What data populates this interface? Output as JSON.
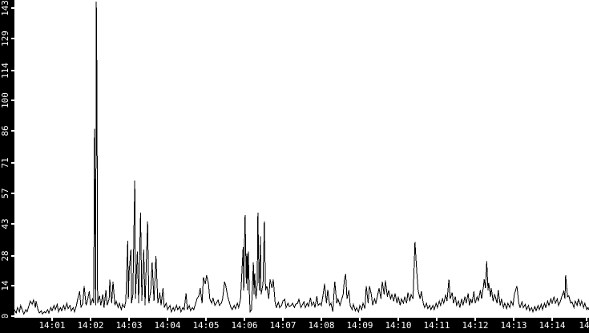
{
  "window": {
    "kind": "traffic-history-graph",
    "plot_background": "#ffffff",
    "axis_bar_color": "#000000",
    "axis_label_color": "#ffffff",
    "line_color": "#000000"
  },
  "chart_data": {
    "type": "line",
    "title": "",
    "xlabel": "",
    "ylabel": "",
    "legend": null,
    "grid": false,
    "x_unit": "time of day (HH:MM), 1 tick per minute",
    "y_range": [
      0,
      143
    ],
    "x_visible_range": [
      "14:00",
      "14:15"
    ],
    "x_axis": {
      "ticks": [
        {
          "t": 60,
          "label": "14:01"
        },
        {
          "t": 120,
          "label": "14:02"
        },
        {
          "t": 180,
          "label": "14:03"
        },
        {
          "t": 240,
          "label": "14:04"
        },
        {
          "t": 300,
          "label": "14:05"
        },
        {
          "t": 360,
          "label": "14:06"
        },
        {
          "t": 420,
          "label": "14:07"
        },
        {
          "t": 480,
          "label": "14:08"
        },
        {
          "t": 540,
          "label": "14:09"
        },
        {
          "t": 600,
          "label": "14:10"
        },
        {
          "t": 660,
          "label": "14:11"
        },
        {
          "t": 720,
          "label": "14:12"
        },
        {
          "t": 780,
          "label": "14:13"
        },
        {
          "t": 840,
          "label": "14:14"
        },
        {
          "t": 900,
          "label": "14"
        }
      ]
    },
    "y_axis": {
      "ticks": [
        {
          "v": 0,
          "label": "0"
        },
        {
          "v": 14,
          "label": "14"
        },
        {
          "v": 28,
          "label": "28"
        },
        {
          "v": 43,
          "label": "43"
        },
        {
          "v": 57,
          "label": "57"
        },
        {
          "v": 71,
          "label": "71"
        },
        {
          "v": 86,
          "label": "86"
        },
        {
          "v": 100,
          "label": "100"
        },
        {
          "v": 114,
          "label": "114"
        },
        {
          "v": 129,
          "label": "129"
        },
        {
          "v": 143,
          "label": "143"
        }
      ]
    },
    "points_unit": "[seconds after 14:00, value]",
    "points": [
      [
        1,
        3
      ],
      [
        4,
        1.5
      ],
      [
        6,
        4
      ],
      [
        9,
        2
      ],
      [
        11,
        5
      ],
      [
        14,
        2.5
      ],
      [
        16,
        1
      ],
      [
        19,
        3
      ],
      [
        21,
        2
      ],
      [
        24,
        5
      ],
      [
        26,
        7
      ],
      [
        29,
        5.5
      ],
      [
        31,
        7.5
      ],
      [
        34,
        4
      ],
      [
        35,
        7
      ],
      [
        38,
        3
      ],
      [
        40,
        1.5
      ],
      [
        43,
        2.5
      ],
      [
        45,
        1
      ],
      [
        48,
        2
      ],
      [
        50,
        1.5
      ],
      [
        53,
        3
      ],
      [
        55,
        1.5
      ],
      [
        58,
        4
      ],
      [
        60,
        2.5
      ],
      [
        63,
        5
      ],
      [
        65,
        3
      ],
      [
        68,
        5.5
      ],
      [
        70,
        2
      ],
      [
        73,
        4
      ],
      [
        75,
        2.5
      ],
      [
        78,
        5
      ],
      [
        80,
        3
      ],
      [
        83,
        6
      ],
      [
        85,
        3.5
      ],
      [
        88,
        5
      ],
      [
        90,
        2.5
      ],
      [
        93,
        4
      ],
      [
        95,
        2
      ],
      [
        98,
        5
      ],
      [
        100,
        8
      ],
      [
        103,
        11.5
      ],
      [
        105,
        4
      ],
      [
        108,
        6
      ],
      [
        110,
        14
      ],
      [
        113,
        5
      ],
      [
        115,
        7
      ],
      [
        118,
        11.5
      ],
      [
        120,
        5
      ],
      [
        123,
        8
      ],
      [
        125,
        6
      ],
      [
        126,
        87
      ],
      [
        128,
        5
      ],
      [
        129,
        146
      ],
      [
        130,
        107
      ],
      [
        131,
        6
      ],
      [
        134,
        9.5
      ],
      [
        136,
        5
      ],
      [
        139,
        10
      ],
      [
        141,
        4
      ],
      [
        144,
        12
      ],
      [
        146,
        5
      ],
      [
        149,
        8
      ],
      [
        150,
        17
      ],
      [
        153,
        6
      ],
      [
        155,
        16
      ],
      [
        158,
        5
      ],
      [
        160,
        7
      ],
      [
        163,
        4
      ],
      [
        165,
        6
      ],
      [
        168,
        3
      ],
      [
        170,
        5.5
      ],
      [
        173,
        4
      ],
      [
        175,
        7
      ],
      [
        178,
        35
      ],
      [
        179,
        8
      ],
      [
        180,
        20
      ],
      [
        183,
        31
      ],
      [
        184,
        6
      ],
      [
        186,
        10
      ],
      [
        189,
        63
      ],
      [
        190,
        8
      ],
      [
        193,
        30
      ],
      [
        195,
        6
      ],
      [
        198,
        48
      ],
      [
        200,
        7
      ],
      [
        203,
        31
      ],
      [
        205,
        5
      ],
      [
        209,
        44
      ],
      [
        211,
        6
      ],
      [
        214,
        12
      ],
      [
        216,
        25
      ],
      [
        219,
        7
      ],
      [
        222,
        28
      ],
      [
        225,
        6
      ],
      [
        228,
        11
      ],
      [
        230,
        5
      ],
      [
        233,
        13
      ],
      [
        235,
        4
      ],
      [
        238,
        6
      ],
      [
        240,
        3
      ],
      [
        244,
        5
      ],
      [
        246,
        2
      ],
      [
        249,
        4
      ],
      [
        251,
        2.5
      ],
      [
        254,
        5
      ],
      [
        256,
        3
      ],
      [
        259,
        4.5
      ],
      [
        261,
        2
      ],
      [
        264,
        4
      ],
      [
        266,
        3
      ],
      [
        269,
        10.5
      ],
      [
        271,
        3
      ],
      [
        274,
        5
      ],
      [
        276,
        2.5
      ],
      [
        279,
        4
      ],
      [
        281,
        3
      ],
      [
        284,
        6
      ],
      [
        286,
        8
      ],
      [
        289,
        9.5
      ],
      [
        291,
        13
      ],
      [
        294,
        6
      ],
      [
        296,
        18
      ],
      [
        299,
        15
      ],
      [
        301,
        19
      ],
      [
        304,
        15
      ],
      [
        306,
        8
      ],
      [
        309,
        6
      ],
      [
        311,
        8.5
      ],
      [
        314,
        5
      ],
      [
        316,
        6
      ],
      [
        319,
        7.5
      ],
      [
        321,
        5
      ],
      [
        324,
        6
      ],
      [
        326,
        8
      ],
      [
        329,
        16
      ],
      [
        331,
        14
      ],
      [
        334,
        9
      ],
      [
        336,
        7
      ],
      [
        339,
        4
      ],
      [
        341,
        3
      ],
      [
        344,
        5
      ],
      [
        346,
        3.5
      ],
      [
        349,
        6
      ],
      [
        351,
        4
      ],
      [
        354,
        8
      ],
      [
        356,
        20
      ],
      [
        358,
        32
      ],
      [
        359,
        12
      ],
      [
        360,
        31
      ],
      [
        361,
        47
      ],
      [
        363,
        15
      ],
      [
        364,
        29
      ],
      [
        365,
        12
      ],
      [
        366,
        30
      ],
      [
        368,
        8
      ],
      [
        369,
        2
      ],
      [
        371,
        3
      ],
      [
        374,
        25
      ],
      [
        375,
        10
      ],
      [
        376,
        20
      ],
      [
        378,
        8
      ],
      [
        380,
        15
      ],
      [
        381,
        48
      ],
      [
        383,
        12
      ],
      [
        385,
        37
      ],
      [
        386,
        10
      ],
      [
        389,
        15
      ],
      [
        391,
        44
      ],
      [
        393,
        12
      ],
      [
        395,
        14
      ],
      [
        398,
        8
      ],
      [
        400,
        17
      ],
      [
        403,
        13
      ],
      [
        405,
        17
      ],
      [
        408,
        6
      ],
      [
        410,
        4
      ],
      [
        413,
        6.5
      ],
      [
        415,
        4
      ],
      [
        418,
        5
      ],
      [
        420,
        7
      ],
      [
        423,
        7.8
      ],
      [
        425,
        4
      ],
      [
        428,
        6
      ],
      [
        430,
        4.5
      ],
      [
        433,
        5
      ],
      [
        435,
        6
      ],
      [
        438,
        4
      ],
      [
        440,
        5.5
      ],
      [
        443,
        6
      ],
      [
        445,
        7.8
      ],
      [
        448,
        4
      ],
      [
        450,
        5
      ],
      [
        453,
        6.7
      ],
      [
        455,
        4
      ],
      [
        458,
        6
      ],
      [
        460,
        4.5
      ],
      [
        463,
        8.6
      ],
      [
        465,
        5
      ],
      [
        468,
        6.5
      ],
      [
        470,
        4
      ],
      [
        473,
        9.3
      ],
      [
        475,
        5
      ],
      [
        478,
        6
      ],
      [
        480,
        5
      ],
      [
        483,
        10.5
      ],
      [
        485,
        15
      ],
      [
        488,
        6
      ],
      [
        490,
        12.3
      ],
      [
        493,
        5
      ],
      [
        495,
        6
      ],
      [
        498,
        2
      ],
      [
        500,
        12
      ],
      [
        501,
        16
      ],
      [
        504,
        6
      ],
      [
        506,
        8
      ],
      [
        509,
        5
      ],
      [
        511,
        7
      ],
      [
        514,
        10
      ],
      [
        516,
        17
      ],
      [
        518,
        19.5
      ],
      [
        520,
        8
      ],
      [
        523,
        12
      ],
      [
        525,
        5
      ],
      [
        528,
        3
      ],
      [
        530,
        5.5
      ],
      [
        533,
        2.5
      ],
      [
        535,
        4
      ],
      [
        538,
        2
      ],
      [
        540,
        5
      ],
      [
        543,
        3
      ],
      [
        545,
        6
      ],
      [
        548,
        3.5
      ],
      [
        550,
        14
      ],
      [
        553,
        6
      ],
      [
        555,
        14
      ],
      [
        558,
        10
      ],
      [
        560,
        5
      ],
      [
        563,
        8
      ],
      [
        565,
        6
      ],
      [
        568,
        10
      ],
      [
        570,
        13
      ],
      [
        573,
        8
      ],
      [
        575,
        16
      ],
      [
        578,
        10
      ],
      [
        580,
        16.5
      ],
      [
        583,
        9
      ],
      [
        585,
        12
      ],
      [
        588,
        8
      ],
      [
        590,
        10
      ],
      [
        593,
        7
      ],
      [
        595,
        10.5
      ],
      [
        598,
        6
      ],
      [
        600,
        9
      ],
      [
        603,
        5
      ],
      [
        605,
        8
      ],
      [
        608,
        6
      ],
      [
        610,
        9
      ],
      [
        613,
        6
      ],
      [
        615,
        11
      ],
      [
        618,
        7
      ],
      [
        620,
        10
      ],
      [
        623,
        8
      ],
      [
        625,
        25
      ],
      [
        626,
        34.5
      ],
      [
        629,
        20
      ],
      [
        631,
        12
      ],
      [
        634,
        8
      ],
      [
        636,
        11.5
      ],
      [
        639,
        6
      ],
      [
        641,
        4
      ],
      [
        644,
        6
      ],
      [
        646,
        3.5
      ],
      [
        649,
        5
      ],
      [
        651,
        3
      ],
      [
        654,
        5
      ],
      [
        656,
        3
      ],
      [
        659,
        6
      ],
      [
        661,
        4
      ],
      [
        664,
        7
      ],
      [
        666,
        5
      ],
      [
        669,
        8
      ],
      [
        671,
        6
      ],
      [
        674,
        10
      ],
      [
        676,
        7
      ],
      [
        679,
        17
      ],
      [
        681,
        8
      ],
      [
        684,
        11
      ],
      [
        686,
        6
      ],
      [
        689,
        9
      ],
      [
        691,
        5
      ],
      [
        694,
        7
      ],
      [
        696,
        4
      ],
      [
        699,
        8
      ],
      [
        701,
        5
      ],
      [
        704,
        9
      ],
      [
        706,
        6
      ],
      [
        709,
        10.5
      ],
      [
        711,
        5
      ],
      [
        713,
        8
      ],
      [
        715,
        6
      ],
      [
        718,
        11.5
      ],
      [
        720,
        6
      ],
      [
        723,
        9
      ],
      [
        725,
        7
      ],
      [
        728,
        12
      ],
      [
        730,
        8
      ],
      [
        733,
        14
      ],
      [
        734,
        17
      ],
      [
        736,
        13
      ],
      [
        738,
        25.5
      ],
      [
        740,
        12
      ],
      [
        741,
        15.5
      ],
      [
        744,
        9
      ],
      [
        745,
        13
      ],
      [
        748,
        7
      ],
      [
        750,
        10
      ],
      [
        751,
        9.5
      ],
      [
        754,
        6
      ],
      [
        756,
        12
      ],
      [
        759,
        5
      ],
      [
        761,
        8
      ],
      [
        764,
        4
      ],
      [
        766,
        6
      ],
      [
        769,
        3.5
      ],
      [
        771,
        6
      ],
      [
        774,
        4
      ],
      [
        776,
        7
      ],
      [
        779,
        5
      ],
      [
        781,
        10
      ],
      [
        785,
        14
      ],
      [
        788,
        6
      ],
      [
        790,
        4
      ],
      [
        793,
        6.7
      ],
      [
        795,
        4
      ],
      [
        798,
        5.5
      ],
      [
        800,
        3
      ],
      [
        803,
        5
      ],
      [
        805,
        2.5
      ],
      [
        808,
        4
      ],
      [
        810,
        2
      ],
      [
        813,
        4.5
      ],
      [
        815,
        2.5
      ],
      [
        818,
        5
      ],
      [
        820,
        3
      ],
      [
        823,
        5.5
      ],
      [
        825,
        3
      ],
      [
        828,
        6
      ],
      [
        830,
        4
      ],
      [
        833,
        7
      ],
      [
        835,
        5
      ],
      [
        838,
        8
      ],
      [
        840,
        6
      ],
      [
        843,
        9
      ],
      [
        845,
        6
      ],
      [
        848,
        8
      ],
      [
        850,
        5
      ],
      [
        853,
        7
      ],
      [
        855,
        9
      ],
      [
        858,
        11.5
      ],
      [
        860,
        8
      ],
      [
        861,
        19
      ],
      [
        864,
        9
      ],
      [
        866,
        9.5
      ],
      [
        869,
        6
      ],
      [
        871,
        6.7
      ],
      [
        874,
        4
      ],
      [
        876,
        7
      ],
      [
        879,
        5
      ],
      [
        881,
        8
      ],
      [
        884,
        5
      ],
      [
        886,
        7
      ],
      [
        889,
        4
      ],
      [
        891,
        6
      ],
      [
        894,
        3
      ],
      [
        896,
        4
      ],
      [
        897,
        3
      ]
    ]
  }
}
